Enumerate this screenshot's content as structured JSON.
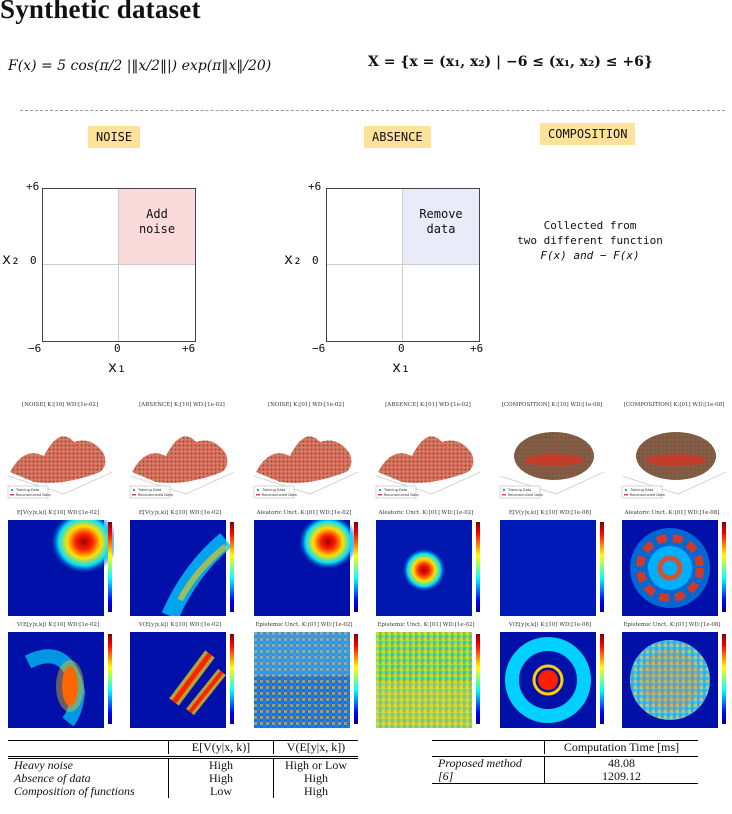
{
  "title": "Synthetic dataset",
  "formula_f": "F(x) = 5 cos(π/2 |‖x/2‖|) exp(π‖x‖/20)",
  "formula_x": "X = {x = (x₁, x₂) | −6 ≤ (x₁, x₂) ≤ +6}",
  "tags": {
    "noise": "NOISE",
    "absence": "ABSENCE",
    "composition": "COMPOSITION"
  },
  "diagram_noise": {
    "box_text_1": "Add",
    "box_text_2": "noise",
    "y_top": "+6",
    "y_mid": "0",
    "y_bot": "−6",
    "x_left": "−6",
    "x_mid": "0",
    "x_right": "+6",
    "y_label": "x₂",
    "x_label": "x₁"
  },
  "diagram_absence": {
    "box_text_1": "Remove",
    "box_text_2": "data",
    "y_top": "+6",
    "y_mid": "0",
    "y_bot": "−6",
    "x_left": "−6",
    "x_mid": "0",
    "x_right": "+6",
    "y_label": "x₂",
    "x_label": "x₁"
  },
  "composition_text": [
    "Collected from",
    "two different function",
    "F(x) and − F(x)"
  ],
  "row1_titles": [
    "[NOISE] K:[10] WD:[1e-02]",
    "[ABSENCE] K:[10] WD:[1e-02]",
    "[NOISE] K:[01] WD:[1e-02]",
    "[ABSENCE] K:[01] WD:[1e-02]",
    "[COMPOSITION] K:[10] WD:[1e-08]",
    "[COMPOSITION] K:[01] WD:[1e-08]"
  ],
  "row2_titles": [
    "E[V(y|x,k)] K:[10] WD:[1e-02]",
    "E[V(y|x,k)] K:[10] WD:[1e-02]",
    "Aleatoric Unct. K:[01] WD:[1e-02]",
    "Aleatoric Unct. K:[01] WD:[1e-02]",
    "E[V(y|x,k)] K:[10] WD:[1e-08]",
    "Aleatoric Unct. K:[01] WD:[1e-08]"
  ],
  "row3_titles": [
    "V(E[y|x,k]) K:[10] WD:[1e-02]",
    "V(E[y|x,k]) K:[10] WD:[1e-02]",
    "Epistemic Unct. K:[01] WD:[1e-02]",
    "Epistemic Unct. K:[01] WD:[1e-02]",
    "V(E[y|x,k]) K:[10] WD:[1e-08]",
    "Epistemic Unct. K:[01] WD:[1e-08]"
  ],
  "legend": {
    "training": "Training Data",
    "reconstructed": "Reconstructed Data"
  },
  "table1": {
    "headers": [
      "",
      "E[V(y|x, k)]",
      "V(E[y|x, k])"
    ],
    "rows": [
      [
        "Heavy noise",
        "High",
        "High or Low"
      ],
      [
        "Absence of data",
        "High",
        "High"
      ],
      [
        "Composition of functions",
        "Low",
        "High"
      ]
    ]
  },
  "table2": {
    "headers": [
      "",
      "Computation Time [ms]"
    ],
    "rows": [
      [
        "Proposed method",
        "48.08"
      ],
      [
        "[6]",
        "1209.12"
      ]
    ]
  },
  "colors": {
    "tag_bg": "#ffe29a",
    "noise_box": "#fadadb",
    "absence_box": "#e9ecf8"
  }
}
